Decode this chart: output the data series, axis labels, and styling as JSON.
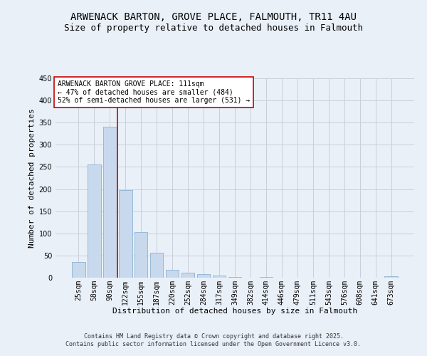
{
  "title": "ARWENACK BARTON, GROVE PLACE, FALMOUTH, TR11 4AU",
  "subtitle": "Size of property relative to detached houses in Falmouth",
  "xlabel": "Distribution of detached houses by size in Falmouth",
  "ylabel": "Number of detached properties",
  "categories": [
    "25sqm",
    "58sqm",
    "90sqm",
    "122sqm",
    "155sqm",
    "187sqm",
    "220sqm",
    "252sqm",
    "284sqm",
    "317sqm",
    "349sqm",
    "382sqm",
    "414sqm",
    "446sqm",
    "479sqm",
    "511sqm",
    "543sqm",
    "576sqm",
    "608sqm",
    "641sqm",
    "673sqm"
  ],
  "values": [
    36,
    256,
    340,
    198,
    103,
    57,
    18,
    11,
    8,
    5,
    2,
    0,
    1,
    0,
    0,
    0,
    0,
    0,
    0,
    0,
    3
  ],
  "bar_color": "#c9d9ed",
  "bar_edge_color": "#7da8cc",
  "grid_color": "#c8d0dc",
  "background_color": "#eaf0f8",
  "vline_x": 2.5,
  "vline_color": "#cc0000",
  "annotation_text": "ARWENACK BARTON GROVE PLACE: 111sqm\n← 47% of detached houses are smaller (484)\n52% of semi-detached houses are larger (531) →",
  "annotation_box_color": "#ffffff",
  "annotation_border_color": "#cc0000",
  "ylim": [
    0,
    450
  ],
  "yticks": [
    0,
    50,
    100,
    150,
    200,
    250,
    300,
    350,
    400,
    450
  ],
  "footer_line1": "Contains HM Land Registry data © Crown copyright and database right 2025.",
  "footer_line2": "Contains public sector information licensed under the Open Government Licence v3.0.",
  "title_fontsize": 10,
  "subtitle_fontsize": 9,
  "axis_label_fontsize": 8,
  "tick_fontsize": 7,
  "annotation_fontsize": 7,
  "footer_fontsize": 6
}
